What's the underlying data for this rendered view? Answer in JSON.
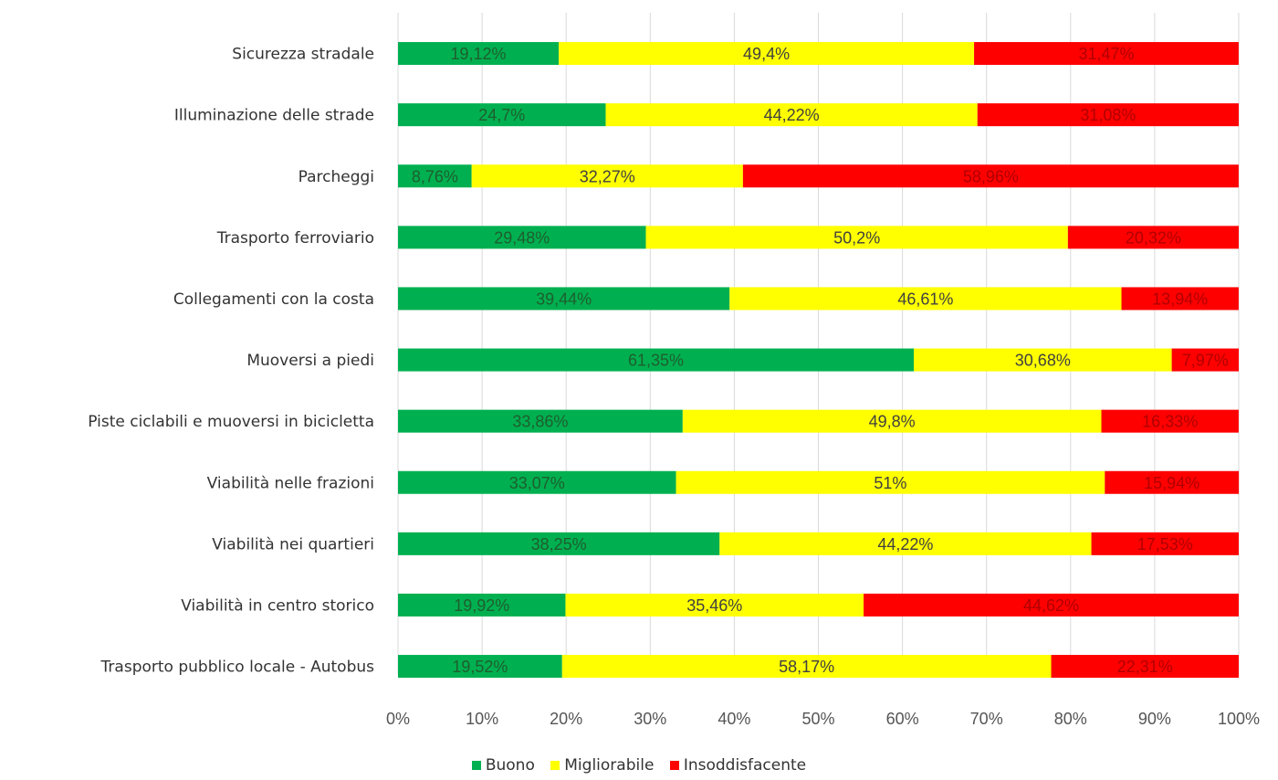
{
  "chart_data": {
    "type": "bar",
    "orientation": "horizontal",
    "stacked": "percent",
    "categories": [
      "Sicurezza stradale",
      "Illuminazione delle strade",
      "Parcheggi",
      "Trasporto ferroviario",
      "Collegamenti con la costa",
      "Muoversi a piedi",
      "Piste ciclabili e muoversi in bicicletta",
      "Viabilità nelle frazioni",
      "Viabilità nei quartieri",
      "Viabilità in centro storico",
      "Trasporto pubblico locale - Autobus"
    ],
    "series": [
      {
        "name": "Buono",
        "color": "#00b050",
        "label_color": "#1e5e2e",
        "values": [
          19.12,
          24.7,
          8.76,
          29.48,
          39.44,
          61.35,
          33.86,
          33.07,
          38.25,
          19.92,
          19.52
        ],
        "labels": [
          "19,12%",
          "24,7%",
          "8,76%",
          "29,48%",
          "39,44%",
          "61,35%",
          "33,86%",
          "33,07%",
          "38,25%",
          "19,92%",
          "19,52%"
        ]
      },
      {
        "name": "Migliorabile",
        "color": "#ffff00",
        "label_color": "#404040",
        "values": [
          49.4,
          44.22,
          32.27,
          50.2,
          46.61,
          30.68,
          49.8,
          51,
          44.22,
          35.46,
          58.17
        ],
        "labels": [
          "49,4%",
          "44,22%",
          "32,27%",
          "50,2%",
          "46,61%",
          "30,68%",
          "49,8%",
          "51%",
          "44,22%",
          "35,46%",
          "58,17%"
        ]
      },
      {
        "name": "Insoddisfacente",
        "color": "#ff0000",
        "label_color": "#b00000",
        "values": [
          31.47,
          31.08,
          58.96,
          20.32,
          13.94,
          7.97,
          16.33,
          15.94,
          17.53,
          44.62,
          22.31
        ],
        "labels": [
          "31,47%",
          "31,08%",
          "58,96%",
          "20,32%",
          "13,94%",
          "7,97%",
          "16,33%",
          "15,94%",
          "17,53%",
          "44,62%",
          "22,31%"
        ]
      }
    ],
    "x_ticks": [
      "0%",
      "10%",
      "20%",
      "30%",
      "40%",
      "50%",
      "60%",
      "70%",
      "80%",
      "90%",
      "100%"
    ],
    "xlim": [
      0,
      100
    ],
    "grid": "vertical",
    "legend_position": "bottom"
  }
}
